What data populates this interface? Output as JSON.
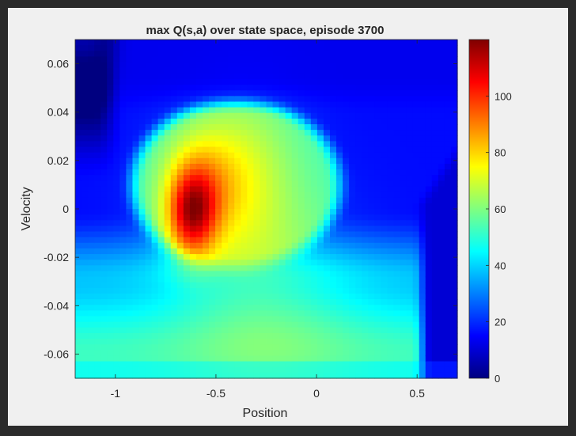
{
  "chart_data": {
    "type": "heatmap",
    "title": "max Q(s,a) over state space, episode 3700",
    "xlabel": "Position",
    "ylabel": "Velocity",
    "xlim": [
      -1.2,
      0.7
    ],
    "ylim": [
      -0.07,
      0.07
    ],
    "x_ticks": [
      -1,
      -0.5,
      0,
      0.5
    ],
    "x_tick_labels": [
      "-1",
      "-0.5",
      "0",
      "0.5"
    ],
    "y_ticks": [
      0.06,
      0.04,
      0.02,
      0,
      -0.02,
      -0.04,
      -0.06
    ],
    "y_tick_labels": [
      "0.06",
      "0.04",
      "0.02",
      "0",
      "-0.02",
      "-0.04",
      "-0.06"
    ],
    "colormap": "jet",
    "clim": [
      0,
      120
    ],
    "colorbar_ticks": [
      100,
      80,
      60,
      40,
      20,
      0
    ],
    "colorbar_tick_labels": [
      "100",
      "80",
      "60",
      "40",
      "20",
      "0"
    ],
    "grid": false,
    "grid_resolution": [
      60,
      60
    ],
    "field_features": {
      "peak_value": 115,
      "peak_location": {
        "position": -0.62,
        "velocity": -0.002
      },
      "reachable_region_value": 63,
      "high_band_value": 88,
      "unreachable_corner_value": 5
    }
  }
}
